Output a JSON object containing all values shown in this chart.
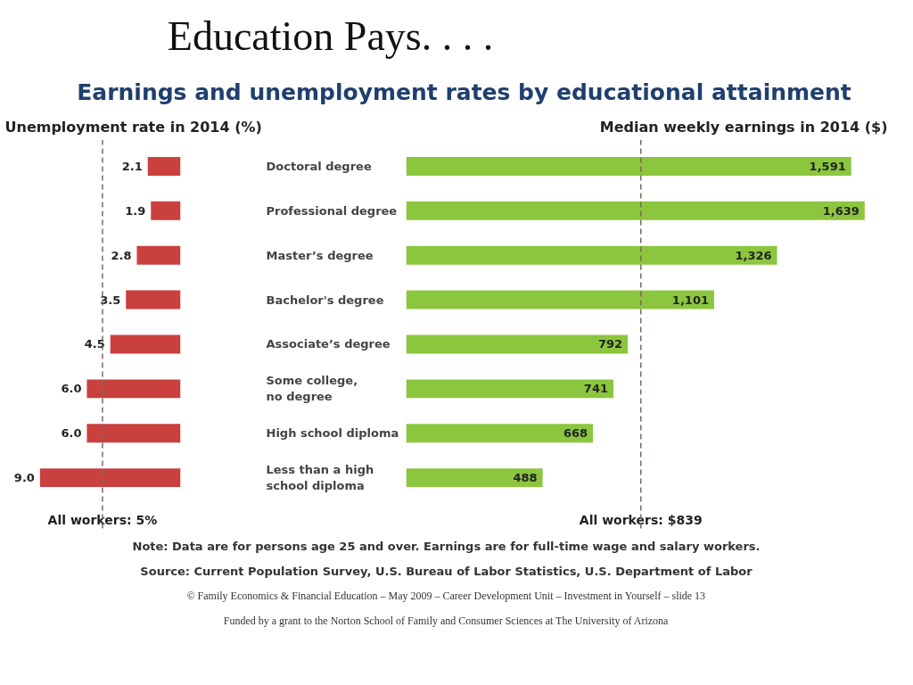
{
  "chart_data": [
    {
      "type": "bar",
      "orientation": "horizontal",
      "title": "Education Pays. . . .",
      "subtitle": "Earnings and unemployment rates by educational attainment",
      "xlabel": "Unemployment rate in 2014 (%)",
      "categories": [
        "Doctoral degree",
        "Professional degree",
        "Master’s degree",
        "Bachelor's degree",
        "Associate’s degree",
        "Some college, no degree",
        "High school diploma",
        "Less than a high school diploma"
      ],
      "series": [
        {
          "color": "#c9403f",
          "values": [
            2.1,
            1.9,
            2.8,
            3.5,
            4.5,
            6.0,
            6.0,
            9.0
          ],
          "value_labels": [
            "2.1",
            "1.9",
            "2.8",
            "3.5",
            "4.5",
            "6.0",
            "6.0",
            "9.0"
          ]
        }
      ],
      "tick_labels": "y",
      "ref_lines": [
        {
          "axis": "x",
          "value": 5,
          "label": "All workers: 5%",
          "color": "#7a6a5a",
          "line_style": "dashed"
        }
      ]
    },
    {
      "type": "bar",
      "orientation": "horizontal",
      "xlabel": "Median weekly earnings in 2014 ($)",
      "series": [
        {
          "color": "#8cc63f",
          "values": [
            1591,
            1639,
            1326,
            1101,
            792,
            741,
            668,
            488
          ],
          "value_labels": [
            "1,591",
            "1,639",
            "1,326",
            "1,101",
            "792",
            "741",
            "668",
            "488"
          ]
        }
      ],
      "tick_labels": false,
      "ref_lines": [
        {
          "axis": "x",
          "value": 839,
          "label": "All workers: $839",
          "color": "#7a6a5a",
          "line_style": "dashed"
        }
      ],
      "annotations": [
        "Note: Data are for persons age 25 and over. Earnings are for full-time wage and salary workers.",
        "Source: Current Population Survey, U.S. Bureau of Labor Statistics, U.S. Department of Labor",
        "© Family Economics & Financial Education – May 2009 – Career Development Unit – Investment in Yourself – slide 13",
        "Funded by a grant to the Norton School of Family and Consumer Sciences at The University of Arizona"
      ]
    }
  ]
}
